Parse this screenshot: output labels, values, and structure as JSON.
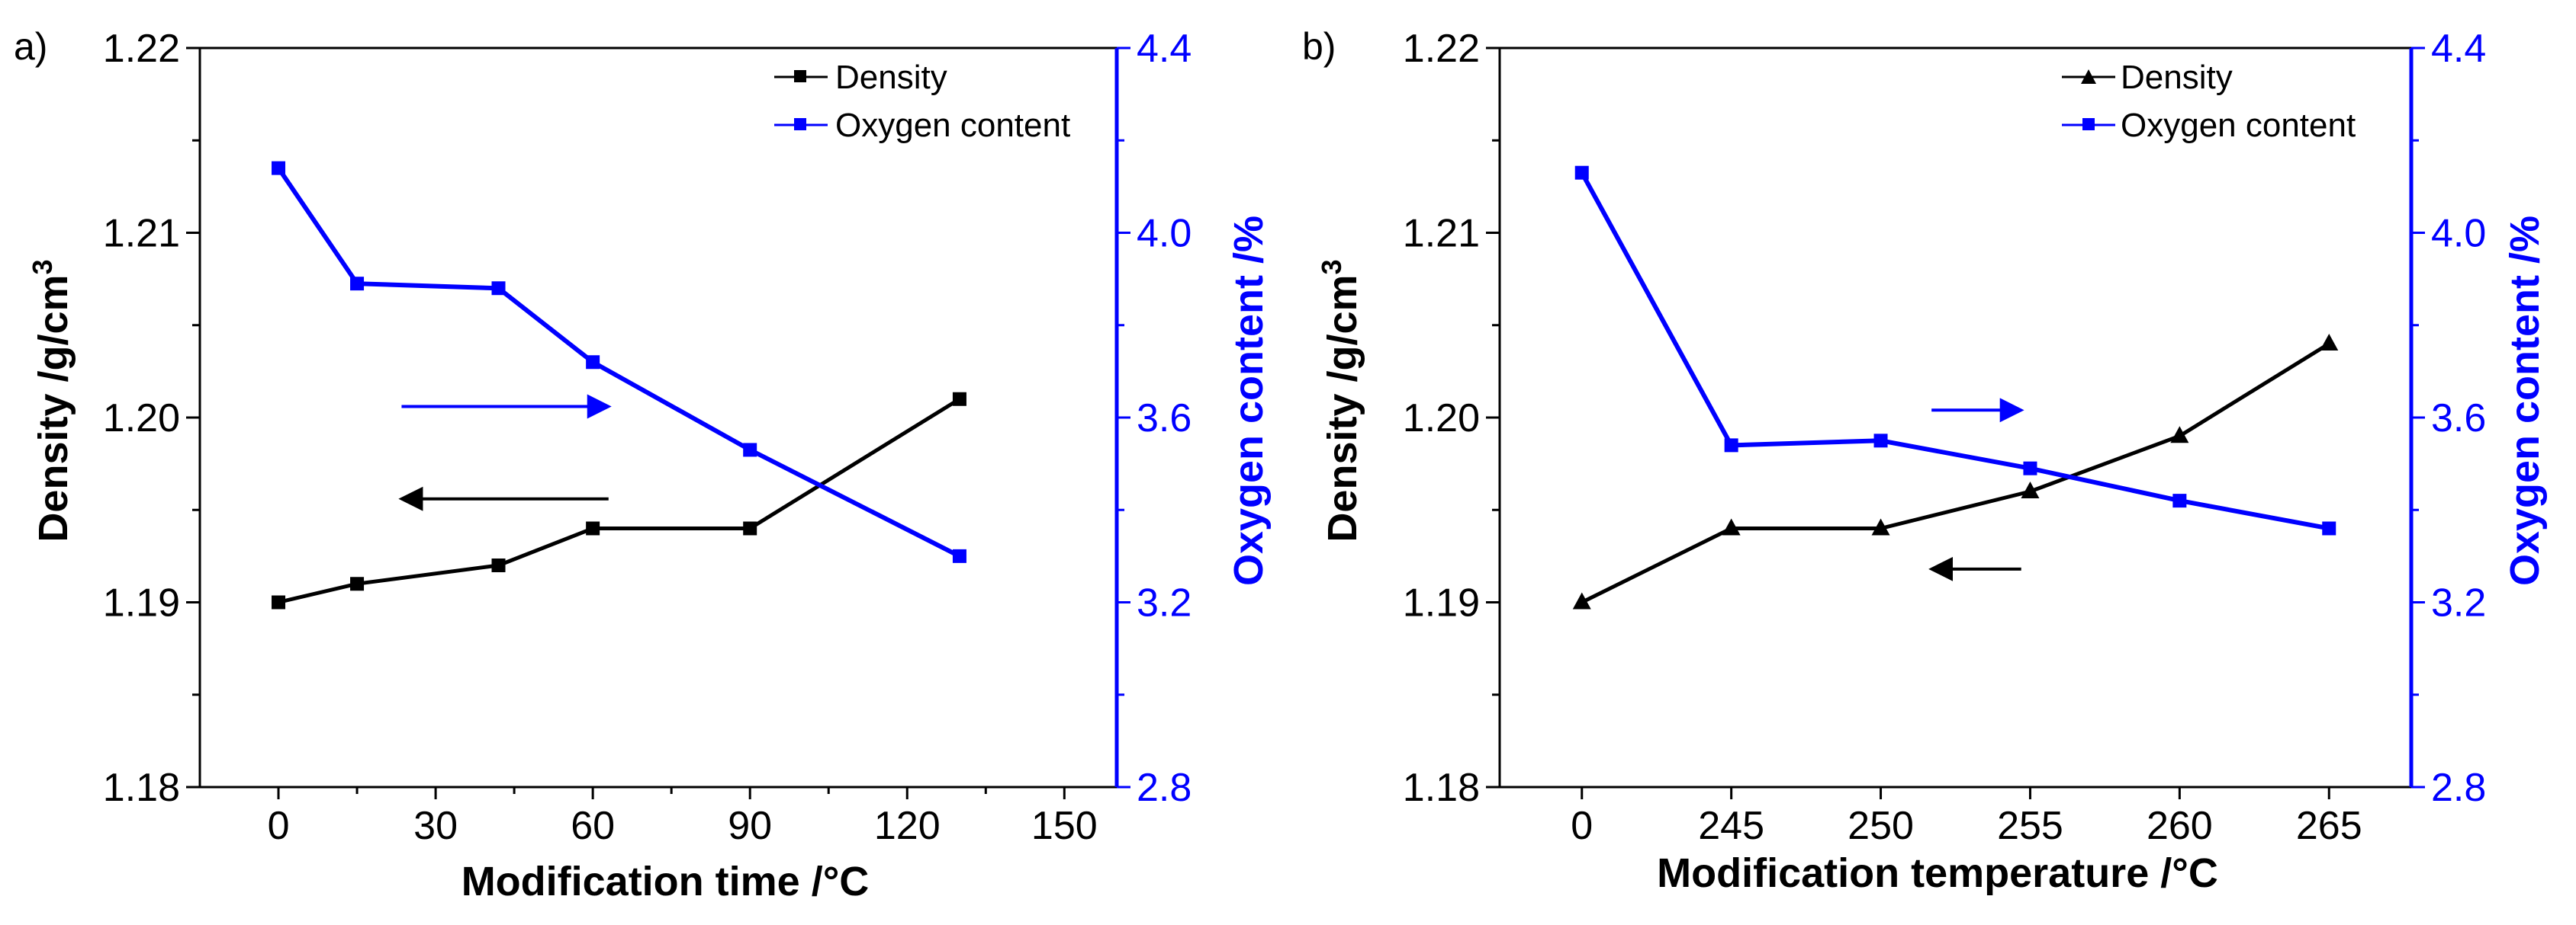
{
  "colors": {
    "density": "#000000",
    "oxygen": "#0000ff"
  },
  "chart_data": [
    {
      "panel_label": "a)",
      "type": "line",
      "x_mode": "linear",
      "xlabel": "Modification time /°C",
      "ylabel_left_main": "Density /g/cm",
      "ylabel_left_sup": "3",
      "ylabel_right": "Oxygen content /%",
      "xlim": [
        -15,
        160
      ],
      "x_ticks": [
        0,
        30,
        60,
        90,
        120,
        150
      ],
      "x_tick_labels": [
        "0",
        "30",
        "60",
        "90",
        "120",
        "150"
      ],
      "ylim_left": [
        1.18,
        1.22
      ],
      "y_ticks_left": [
        1.18,
        1.19,
        1.2,
        1.21,
        1.22
      ],
      "y_tick_labels_left": [
        "1.18",
        "1.19",
        "1.20",
        "1.21",
        "1.22"
      ],
      "ylim_right": [
        2.8,
        4.4
      ],
      "y_ticks_right": [
        2.8,
        3.2,
        3.6,
        4.0,
        4.4
      ],
      "y_tick_labels_right": [
        "2.8",
        "3.2",
        "3.6",
        "4.0",
        "4.4"
      ],
      "legend": {
        "position": "top-right",
        "density_label": "Density",
        "oxygen_label": "Oxygen content"
      },
      "series": [
        {
          "name": "Density",
          "axis": "left",
          "marker": "square",
          "x": [
            0,
            15,
            42,
            60,
            90,
            130
          ],
          "values": [
            1.19,
            1.191,
            1.192,
            1.194,
            1.194,
            1.201
          ]
        },
        {
          "name": "Oxygen content",
          "axis": "right",
          "marker": "square",
          "x": [
            0,
            15,
            42,
            60,
            90,
            130
          ],
          "values": [
            4.14,
            3.89,
            3.88,
            3.72,
            3.53,
            3.3
          ]
        }
      ],
      "annotations": [
        {
          "series": "Oxygen content",
          "direction": "right",
          "x_range": [
            23.5,
            63
          ],
          "y_left": 1.2006
        },
        {
          "series": "Density",
          "direction": "left",
          "x_range": [
            23.5,
            63
          ],
          "y_left": 1.1956
        }
      ]
    },
    {
      "panel_label": "b)",
      "type": "line",
      "x_mode": "category",
      "xlabel": "Modification temperature /°C",
      "ylabel_left_main": "Density /g/cm",
      "ylabel_left_sup": "3",
      "ylabel_right": "Oxygen content /%",
      "categories": [
        "0",
        "245",
        "250",
        "255",
        "260",
        "265"
      ],
      "ylim_left": [
        1.18,
        1.22
      ],
      "y_ticks_left": [
        1.18,
        1.19,
        1.2,
        1.21,
        1.22
      ],
      "y_tick_labels_left": [
        "1.18",
        "1.19",
        "1.20",
        "1.21",
        "1.22"
      ],
      "ylim_right": [
        2.8,
        4.4
      ],
      "y_ticks_right": [
        2.8,
        3.2,
        3.6,
        4.0,
        4.4
      ],
      "y_tick_labels_right": [
        "2.8",
        "3.2",
        "3.6",
        "4.0",
        "4.4"
      ],
      "legend": {
        "position": "top-right",
        "density_label": "Density",
        "oxygen_label": "Oxygen content"
      },
      "series": [
        {
          "name": "Density",
          "axis": "left",
          "marker": "triangle",
          "values": [
            1.19,
            1.194,
            1.194,
            1.196,
            1.199,
            1.204
          ]
        },
        {
          "name": "Oxygen content",
          "axis": "right",
          "marker": "square",
          "values": [
            4.13,
            3.54,
            3.55,
            3.49,
            3.42,
            3.36
          ]
        }
      ],
      "annotations": [
        {
          "series": "Oxygen content",
          "direction": "right",
          "x_range": [
            2.34,
            2.94
          ],
          "y_left": 1.2004
        },
        {
          "series": "Density",
          "direction": "left",
          "x_range": [
            2.34,
            2.94
          ],
          "y_left": 1.1918
        }
      ]
    }
  ]
}
